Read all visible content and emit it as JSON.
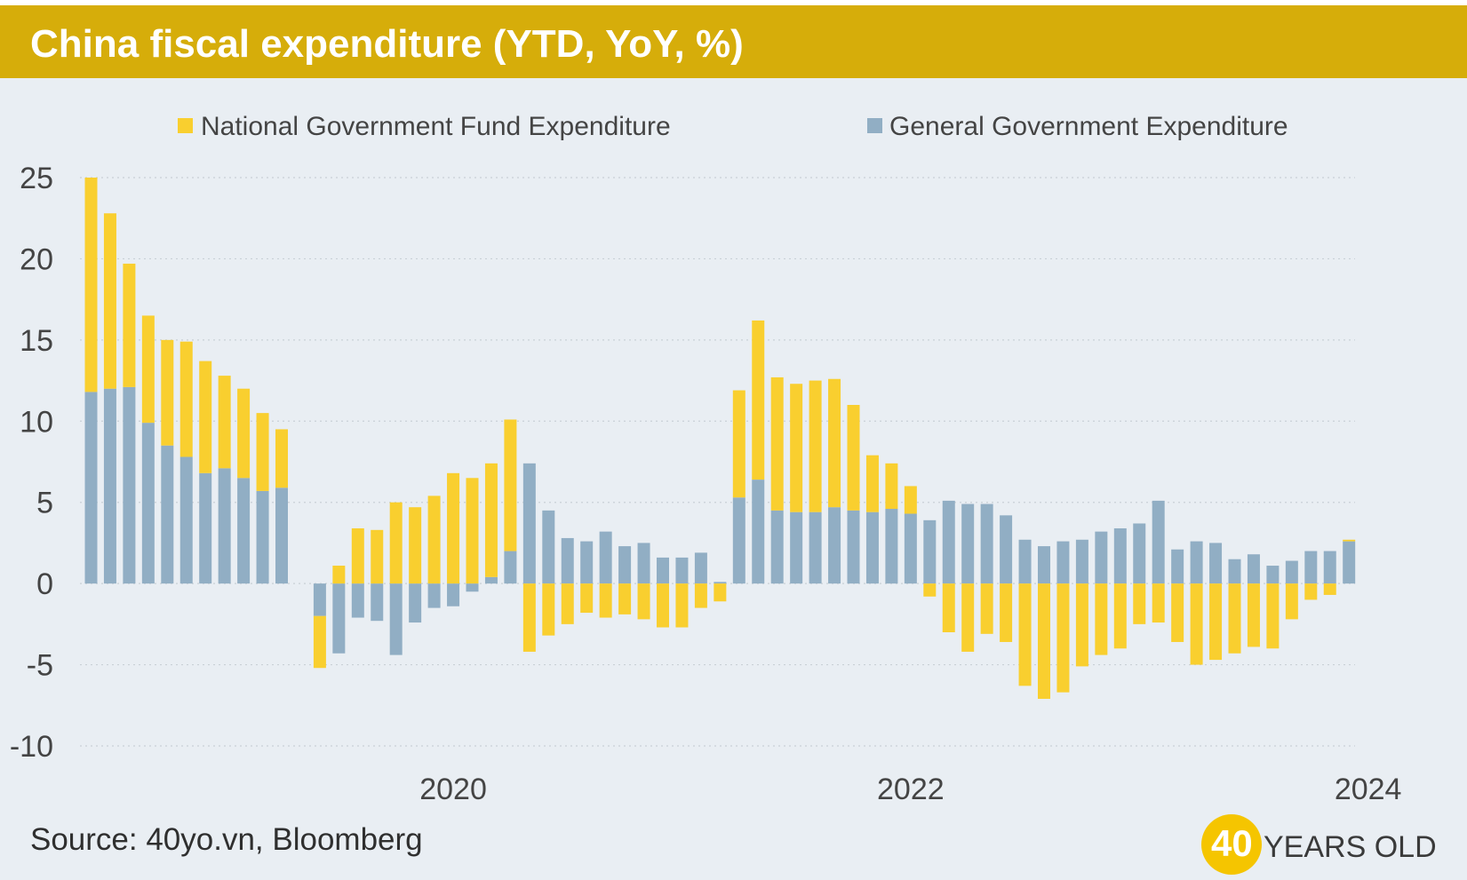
{
  "header": {
    "title": "China fiscal expenditure (YTD, YoY, %)"
  },
  "footer": {
    "source": "Source: 40yo.vn, Bloomberg"
  },
  "logo": {
    "number": "40",
    "text": "YEARS OLD"
  },
  "colors": {
    "fund": "#f9cf2f",
    "general": "#91aec4",
    "title_bg": "#d6ad0a",
    "background": "#e9eef3"
  },
  "chart_data": {
    "type": "bar",
    "stacked": true,
    "title": "China fiscal expenditure (YTD, YoY, %)",
    "ylabel": "",
    "xlabel": "",
    "ylim": [
      -10,
      25
    ],
    "yticks": [
      25,
      20,
      15,
      10,
      5,
      0,
      -5,
      -10
    ],
    "ytick_labels": [
      "25",
      "20",
      "15",
      "10",
      "5",
      "0",
      "-5",
      "-10"
    ],
    "x_year_labels": [
      {
        "label": "2020",
        "bar_index": 19
      },
      {
        "label": "2022",
        "bar_index": 43
      },
      {
        "label": "2024",
        "bar_index": 67
      }
    ],
    "legend": [
      "National Government Fund Expenditure",
      "General Government Expenditure"
    ],
    "legend_position": "top",
    "grid": "horizontal-dotted",
    "series": [
      {
        "name": "General Government Expenditure",
        "values": [
          11.8,
          12.0,
          12.1,
          9.9,
          8.5,
          7.8,
          6.8,
          7.1,
          6.5,
          5.7,
          5.9,
          null,
          -2.0,
          -4.3,
          -2.1,
          -2.3,
          -4.4,
          -2.4,
          -1.5,
          -1.4,
          -0.5,
          0.4,
          2.0,
          7.4,
          4.5,
          2.8,
          2.6,
          3.2,
          2.3,
          2.5,
          1.6,
          1.6,
          1.9,
          0.1,
          5.3,
          6.4,
          4.5,
          4.4,
          4.4,
          4.7,
          4.5,
          4.4,
          4.6,
          4.3,
          3.9,
          5.1,
          4.9,
          4.9,
          4.2,
          2.7,
          2.3,
          2.6,
          2.7,
          3.2,
          3.4,
          3.7,
          5.1,
          2.1,
          2.6,
          2.5,
          1.5,
          1.8,
          1.1,
          1.4,
          2.0,
          2.0,
          2.6
        ]
      },
      {
        "name": "National Government Fund Expenditure",
        "values": [
          13.2,
          10.8,
          7.6,
          6.6,
          6.5,
          7.1,
          6.9,
          5.7,
          5.5,
          4.8,
          3.6,
          null,
          -3.2,
          1.1,
          3.4,
          3.3,
          5.0,
          4.7,
          5.4,
          6.8,
          6.5,
          7.0,
          8.1,
          -4.2,
          -3.2,
          -2.5,
          -1.8,
          -2.1,
          -1.9,
          -2.2,
          -2.7,
          -2.7,
          -1.5,
          -1.1,
          6.6,
          9.8,
          8.2,
          7.9,
          8.1,
          7.9,
          6.5,
          3.5,
          2.8,
          1.7,
          -0.8,
          -3.0,
          -4.2,
          -3.1,
          -3.6,
          -6.3,
          -7.1,
          -6.7,
          -5.1,
          -4.4,
          -4.0,
          -2.5,
          -2.4,
          -3.6,
          -5.0,
          -4.7,
          -4.3,
          -3.9,
          -4.0,
          -2.2,
          -1.0,
          -0.7,
          0.1
        ]
      }
    ]
  }
}
